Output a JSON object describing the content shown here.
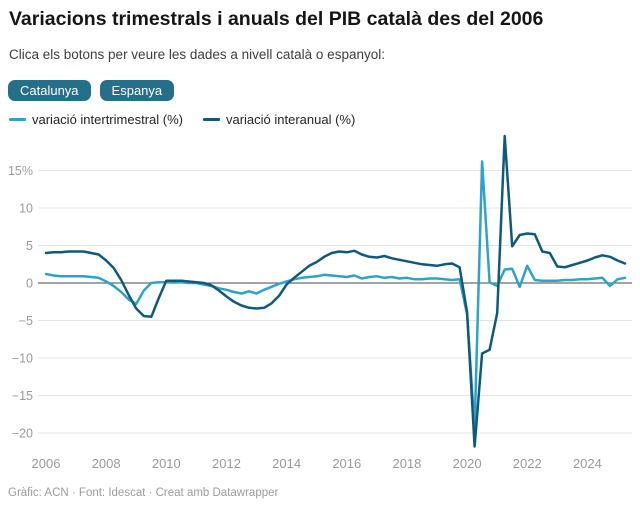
{
  "header": {
    "title": "Variacions trimestrals i anuals del PIB català des del 2006",
    "subtitle": "Clica els botons per veure les dades a nivell català o espanyol:"
  },
  "theme": {
    "accent": "#256f8a",
    "grid_color": "#e4e4e4",
    "zero_line_color": "#4a4a4a",
    "axis_label_color": "#9a9a9a"
  },
  "buttons": [
    {
      "label": "Catalunya"
    },
    {
      "label": "Espanya"
    }
  ],
  "legend": [
    {
      "label": "variació intertrimestral (%)"
    },
    {
      "label": "variació interanual (%)"
    }
  ],
  "chart_data": {
    "type": "line",
    "x_start_year": 2006,
    "x_frequency": "quarterly",
    "x_range": [
      "2006 Q1",
      "2025 Q2"
    ],
    "x_ticks": [
      2006,
      2008,
      2010,
      2012,
      2014,
      2016,
      2018,
      2020,
      2022,
      2024
    ],
    "ylim": [
      -22,
      20
    ],
    "grid": true,
    "legend_position": "top",
    "y_ticks": [
      {
        "v": 15,
        "label": "15%"
      },
      {
        "v": 10,
        "label": "10"
      },
      {
        "v": 5,
        "label": "5"
      },
      {
        "v": 0,
        "label": "0"
      },
      {
        "v": -5,
        "label": "−5"
      },
      {
        "v": -10,
        "label": "−10"
      },
      {
        "v": -15,
        "label": "−15"
      },
      {
        "v": -20,
        "label": "−20"
      }
    ],
    "series": [
      {
        "name": "variació intertrimestral (%)",
        "color": "#2ea3c9",
        "values": [
          1.2,
          1.0,
          0.9,
          0.9,
          0.9,
          0.9,
          0.8,
          0.7,
          0.2,
          -0.4,
          -1.2,
          -2.2,
          -2.8,
          -1.0,
          0.0,
          0.1,
          0.1,
          0.2,
          0.1,
          0.0,
          0.0,
          -0.2,
          -0.4,
          -0.7,
          -0.9,
          -1.2,
          -1.4,
          -1.1,
          -1.4,
          -0.9,
          -0.5,
          -0.1,
          0.2,
          0.5,
          0.7,
          0.8,
          0.9,
          1.1,
          1.0,
          0.9,
          0.8,
          1.0,
          0.6,
          0.8,
          0.9,
          0.7,
          0.8,
          0.6,
          0.7,
          0.5,
          0.5,
          0.6,
          0.6,
          0.5,
          0.4,
          0.5,
          -4.2,
          -19.4,
          16.2,
          0.1,
          -0.4,
          1.8,
          1.9,
          -0.5,
          2.3,
          0.4,
          0.3,
          0.3,
          0.3,
          0.4,
          0.4,
          0.5,
          0.5,
          0.6,
          0.7,
          -0.4,
          0.5,
          0.7
        ]
      },
      {
        "name": "variació interanual (%)",
        "color": "#0f5a7c",
        "values": [
          4.0,
          4.1,
          4.1,
          4.2,
          4.2,
          4.2,
          4.0,
          3.8,
          3.0,
          2.0,
          0.4,
          -1.6,
          -3.4,
          -4.4,
          -4.5,
          -2.0,
          0.3,
          0.3,
          0.3,
          0.2,
          0.1,
          0.0,
          -0.3,
          -1.0,
          -1.8,
          -2.5,
          -3.0,
          -3.3,
          -3.4,
          -3.3,
          -2.7,
          -1.7,
          -0.2,
          0.7,
          1.5,
          2.3,
          2.8,
          3.5,
          4.0,
          4.2,
          4.1,
          4.3,
          3.8,
          3.5,
          3.4,
          3.6,
          3.3,
          3.1,
          2.9,
          2.7,
          2.5,
          2.4,
          2.3,
          2.5,
          2.6,
          2.1,
          -3.9,
          -21.8,
          -9.4,
          -8.9,
          -4.0,
          19.6,
          4.9,
          6.4,
          6.6,
          6.5,
          4.2,
          4.0,
          2.2,
          2.1,
          2.4,
          2.7,
          3.0,
          3.4,
          3.7,
          3.5,
          3.0,
          2.6
        ]
      }
    ]
  },
  "footer": {
    "credit": "Gràfic: ACN · Font: Idescat · Creat amb Datawrapper"
  }
}
